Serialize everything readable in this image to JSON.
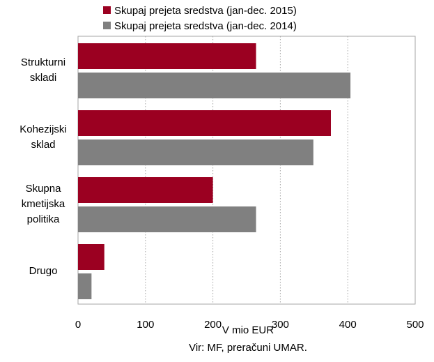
{
  "chart_data": {
    "type": "bar",
    "orientation": "horizontal",
    "categories": [
      [
        "Strukturni",
        "skladi"
      ],
      [
        "Kohezijski",
        "sklad"
      ],
      [
        "Skupna",
        "kmetijska",
        "politika"
      ],
      [
        "Drugo"
      ]
    ],
    "series": [
      {
        "name": "Skupaj prejeta sredstva (jan-dec. 2015)",
        "color": "#9b0021",
        "values": [
          264,
          375,
          200,
          39
        ]
      },
      {
        "name": "Skupaj prejeta sredstva (jan-dec. 2014)",
        "color": "#808080",
        "values": [
          404,
          349,
          264,
          20
        ]
      }
    ],
    "xlabel": "V mio EUR",
    "xlim": [
      0,
      500
    ],
    "xticks": [
      0,
      100,
      200,
      300,
      400,
      500
    ],
    "grid": "vertical dotted",
    "legend_position": "top",
    "source": "Vir: MF, preračuni UMAR."
  }
}
